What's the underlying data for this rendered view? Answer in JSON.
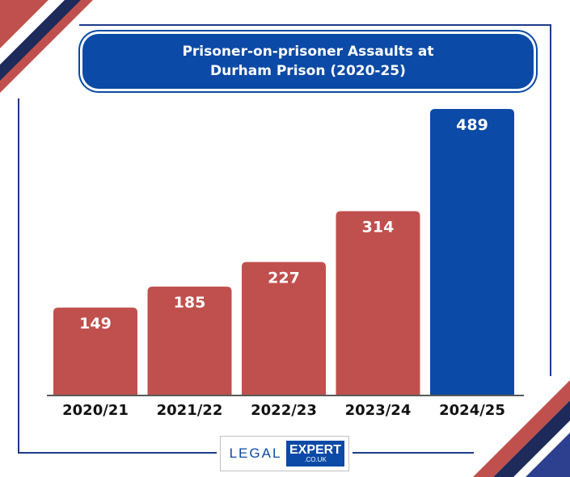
{
  "title_line1": "Prisoner-on-prisoner Assaults at",
  "title_line2": "Durham Prison (2020-25)",
  "chart_data": {
    "type": "bar",
    "title": "Prisoner-on-prisoner Assaults at Durham Prison (2020-25)",
    "categories": [
      "2020/21",
      "2021/22",
      "2022/23",
      "2023/24",
      "2024/25"
    ],
    "values": [
      149,
      185,
      227,
      314,
      489
    ],
    "ylim": [
      0,
      489
    ],
    "xlabel": "",
    "ylabel": "",
    "grid": false,
    "colors": [
      "#c0504d",
      "#c0504d",
      "#c0504d",
      "#c0504d",
      "#0b4aa6"
    ]
  },
  "logo": {
    "left_text": "LEGAL",
    "right_text": "EXPERT",
    "sub_text": ".CO.UK"
  },
  "colors": {
    "accent_red": "#c0504d",
    "accent_blue": "#0b4aa6",
    "navy": "#1e3a8a"
  }
}
